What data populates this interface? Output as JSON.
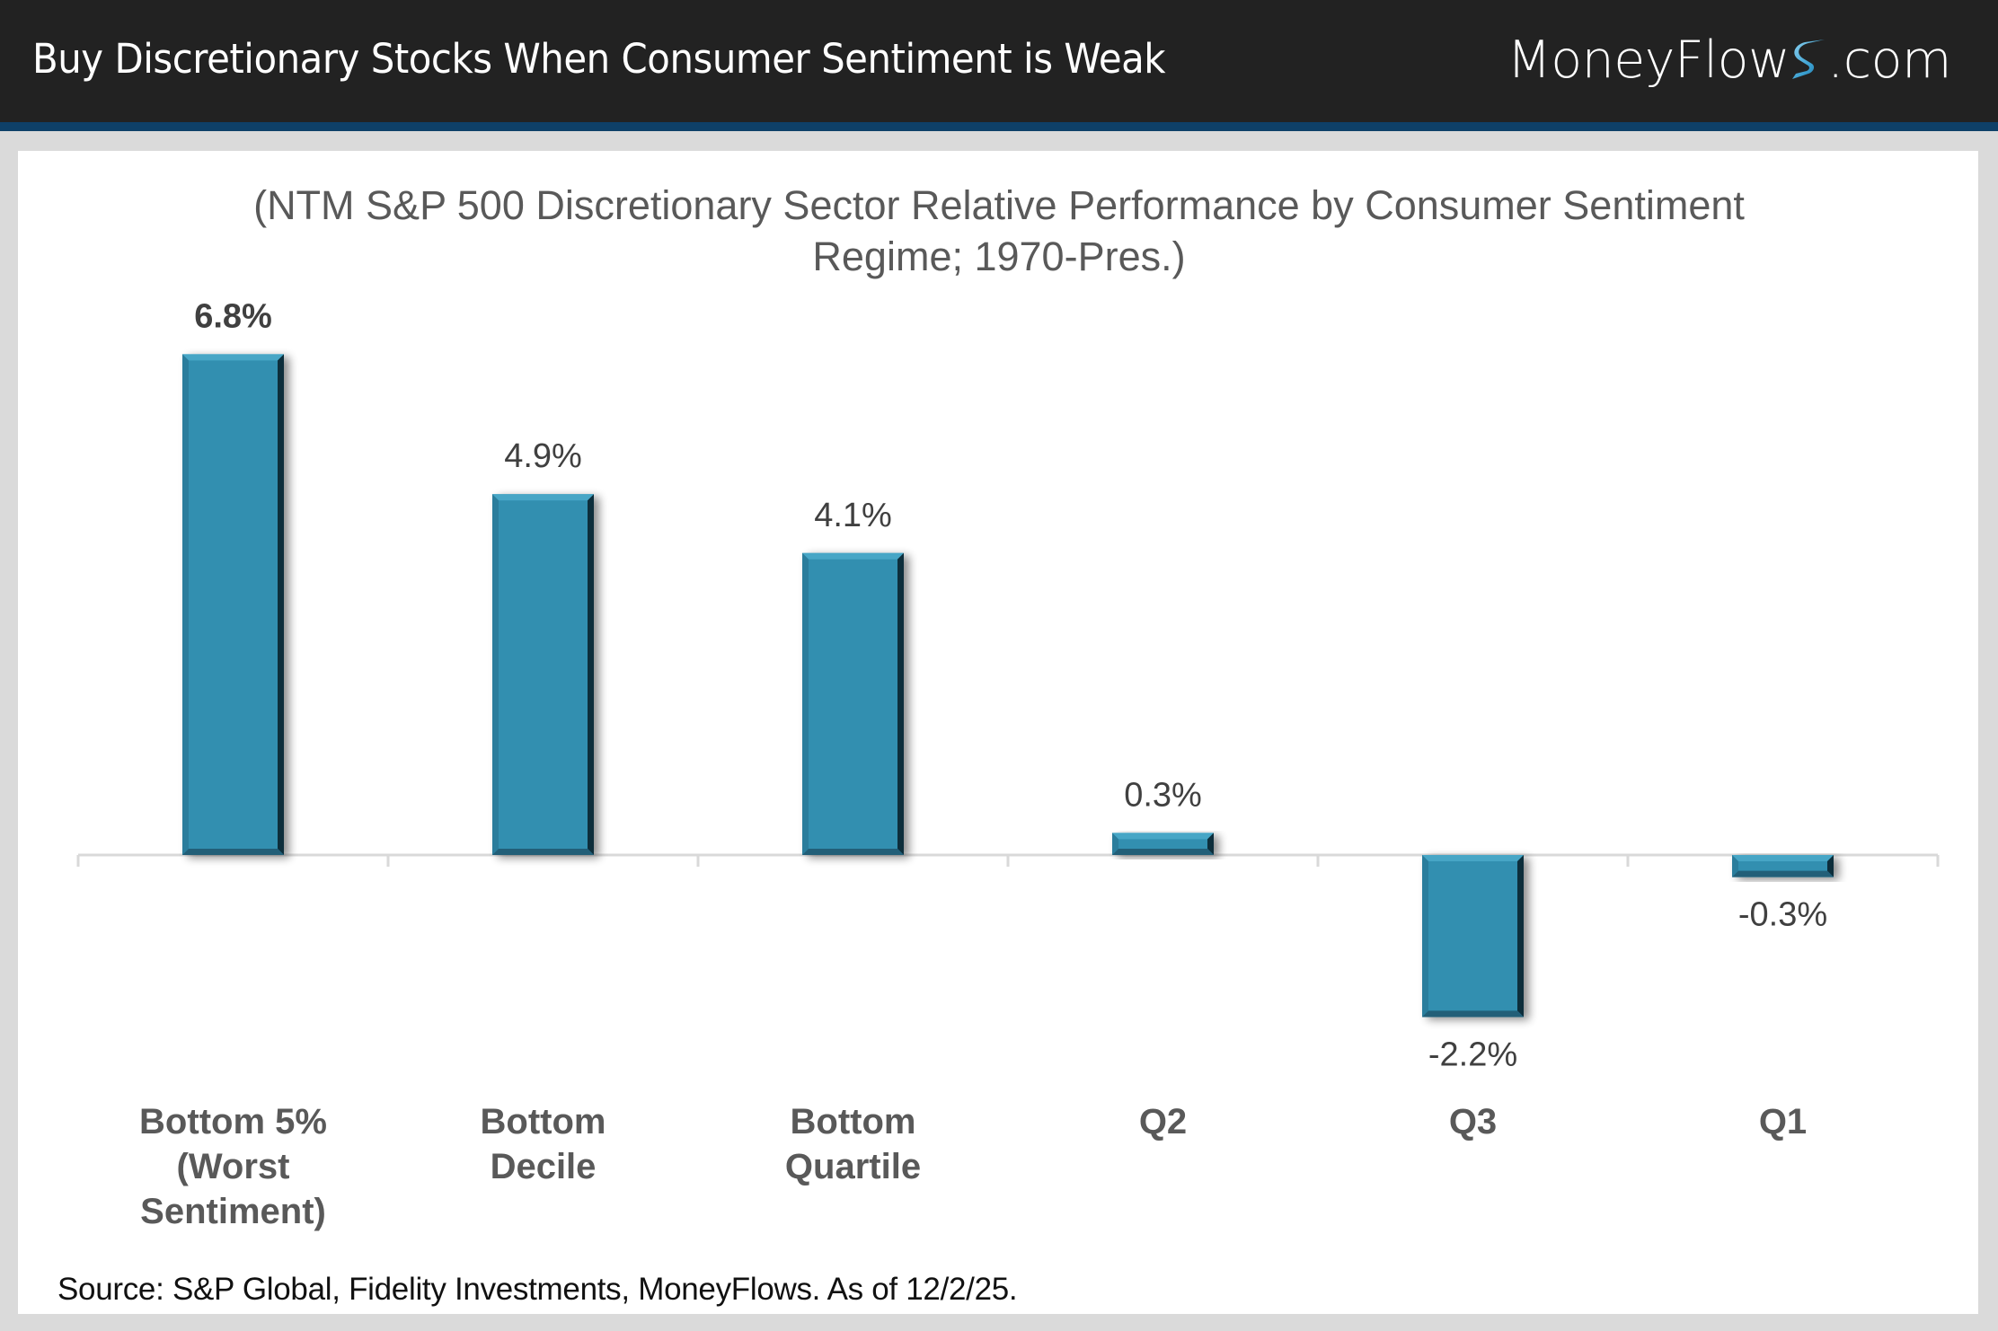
{
  "header": {
    "title": "Buy Discretionary Stocks When Consumer Sentiment is Weak",
    "logo": {
      "prefix": "MoneyFlow",
      "s_icon": "stylized-s-icon",
      "suffix": ".com"
    }
  },
  "colors": {
    "header_bg": "#222222",
    "header_stripe": "#0e4068",
    "bar": "#318fb0",
    "axis": "#d9d9d9",
    "label_text": "#595959"
  },
  "chart_data": {
    "type": "bar",
    "title": "",
    "subtitle_lines": [
      "(NTM S&P 500 Discretionary Sector Relative Performance by Consumer Sentiment",
      "Regime; 1970-Pres.)"
    ],
    "categories": [
      [
        "Bottom 5%",
        "(Worst",
        "Sentiment)"
      ],
      [
        "Bottom",
        "Decile"
      ],
      [
        "Bottom",
        "Quartile"
      ],
      [
        "Q2"
      ],
      [
        "Q3"
      ],
      [
        "Q1"
      ]
    ],
    "values": [
      6.8,
      4.9,
      4.1,
      0.3,
      -2.2,
      -0.3
    ],
    "data_labels": [
      "6.8%",
      "4.9%",
      "4.1%",
      "0.3%",
      "-2.2%",
      "-0.3%"
    ],
    "highlighted_label_index": 0,
    "units": "%",
    "xlabel": "",
    "ylabel": "",
    "ylim": [
      -2.5,
      7.5
    ],
    "grid": false,
    "legend": "none"
  },
  "footnote": "Source: S&P Global, Fidelity Investments, MoneyFlows. As of 12/2/25."
}
